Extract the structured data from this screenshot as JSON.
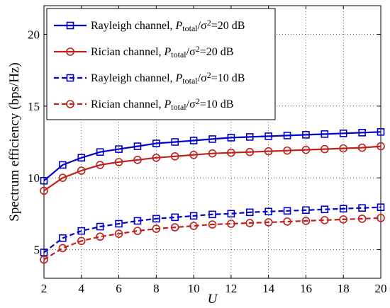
{
  "chart_data": {
    "type": "line",
    "xlabel": "U",
    "ylabel": "Spectrum efficiency (bps/Hz)",
    "xlim": [
      2,
      20
    ],
    "ylim": [
      3,
      22
    ],
    "xticks": [
      2,
      4,
      6,
      8,
      10,
      12,
      14,
      16,
      18,
      20
    ],
    "yticks": [
      5,
      10,
      15,
      20
    ],
    "grid": true,
    "legend_position": "top-left",
    "x": [
      2,
      3,
      4,
      5,
      6,
      7,
      8,
      9,
      10,
      11,
      12,
      13,
      14,
      15,
      16,
      17,
      18,
      19,
      20
    ],
    "series": [
      {
        "name": "Rayleigh channel, P_total/σ²=20 dB",
        "legend_main": "Rayleigh channel, ",
        "legend_p": "P",
        "legend_sub": "total",
        "legend_mid": "/σ",
        "legend_sup": "2",
        "legend_end": "=20 dB",
        "color": "#0000cc",
        "line_style": "solid",
        "marker": "square",
        "values": [
          9.8,
          10.9,
          11.4,
          11.8,
          12.0,
          12.2,
          12.4,
          12.5,
          12.6,
          12.7,
          12.8,
          12.85,
          12.9,
          12.95,
          13.0,
          13.05,
          13.1,
          13.15,
          13.2
        ]
      },
      {
        "name": "Rician channel, P_total/σ²=20 dB",
        "legend_main": "Rician channel, ",
        "legend_p": "P",
        "legend_sub": "total",
        "legend_mid": "/σ",
        "legend_sup": "2",
        "legend_end": "=20 dB",
        "color": "#c0201a",
        "line_style": "solid",
        "marker": "circle",
        "values": [
          9.1,
          10.0,
          10.5,
          10.9,
          11.1,
          11.25,
          11.4,
          11.5,
          11.6,
          11.7,
          11.75,
          11.8,
          11.85,
          11.9,
          11.95,
          12.0,
          12.05,
          12.1,
          12.2
        ]
      },
      {
        "name": "Rayleigh channel, P_total/σ²=10 dB",
        "legend_main": "Rayleigh channel, ",
        "legend_p": "P",
        "legend_sub": "total",
        "legend_mid": "/σ",
        "legend_sup": "2",
        "legend_end": "=10 dB",
        "color": "#0000cc",
        "line_style": "dashed",
        "marker": "square",
        "values": [
          4.8,
          5.8,
          6.3,
          6.6,
          6.8,
          7.0,
          7.15,
          7.25,
          7.35,
          7.45,
          7.5,
          7.6,
          7.65,
          7.7,
          7.75,
          7.8,
          7.85,
          7.9,
          7.95
        ]
      },
      {
        "name": "Rician channel, P_total/σ²=10 dB",
        "legend_main": "Rician channel, ",
        "legend_p": "P",
        "legend_sub": "total",
        "legend_mid": "/σ",
        "legend_sup": "2",
        "legend_end": "=10 dB",
        "color": "#c0201a",
        "line_style": "dashed",
        "marker": "circle",
        "values": [
          4.3,
          5.1,
          5.6,
          5.9,
          6.1,
          6.3,
          6.45,
          6.55,
          6.65,
          6.75,
          6.8,
          6.85,
          6.9,
          6.95,
          7.0,
          7.05,
          7.1,
          7.15,
          7.2
        ]
      }
    ]
  }
}
